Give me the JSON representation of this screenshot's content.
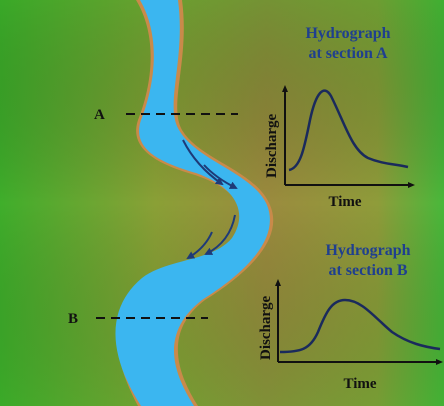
{
  "sections": {
    "a": {
      "label": "A"
    },
    "b": {
      "label": "B"
    }
  },
  "hydrograph_a": {
    "title_line1": "Hydrograph",
    "title_line2": "at section A",
    "ylabel": "Discharge",
    "xlabel": "Time"
  },
  "hydrograph_b": {
    "title_line1": "Hydrograph",
    "title_line2": "at section B",
    "ylabel": "Discharge",
    "xlabel": "Time"
  },
  "colors": {
    "river": "#3bb6f0",
    "river_bank": "#c98a4a",
    "curve": "#1a2a5c",
    "arrow": "#1e3a78",
    "title": "#1f3f8f"
  }
}
